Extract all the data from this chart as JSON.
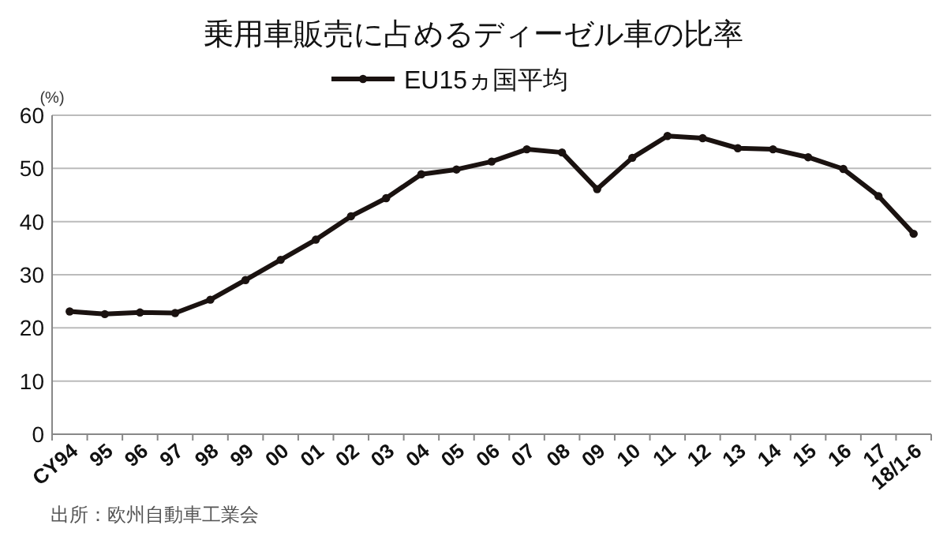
{
  "chart_data": {
    "type": "line",
    "title": "乗用車販売に占めるディーゼル車の比率",
    "ylabel": "(%)",
    "categories": [
      "CY94",
      "95",
      "96",
      "97",
      "98",
      "99",
      "00",
      "01",
      "02",
      "03",
      "04",
      "05",
      "06",
      "07",
      "08",
      "09",
      "10",
      "11",
      "12",
      "13",
      "14",
      "15",
      "16",
      "17",
      "18/1-6"
    ],
    "series": [
      {
        "name": "EU15ヵ国平均",
        "color": "#1a1210",
        "values": [
          23.1,
          22.6,
          22.9,
          22.8,
          25.3,
          29.0,
          32.8,
          36.6,
          41.0,
          44.4,
          48.9,
          49.8,
          51.3,
          53.6,
          53.0,
          46.1,
          52.0,
          56.1,
          55.7,
          53.8,
          53.6,
          52.1,
          49.9,
          44.8,
          37.7
        ]
      }
    ],
    "ylim": [
      0,
      60
    ],
    "yticks": [
      0,
      10,
      20,
      30,
      40,
      50,
      60
    ],
    "grid": "y",
    "legend": "top",
    "marker": "circle",
    "line_style": "solid",
    "annotations": [
      "出所：欧州自動車工業会"
    ]
  }
}
